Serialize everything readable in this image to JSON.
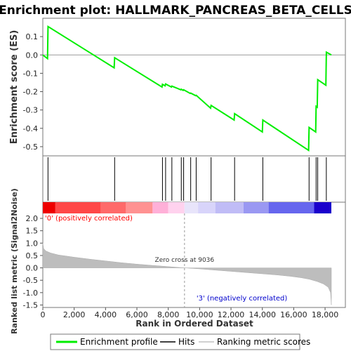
{
  "chart_data": {
    "type": "line",
    "title": "Enrichment plot: HALLMARK_PANCREAS_BETA_CELLS",
    "top_panel": {
      "ylabel": "Enrichment score (ES)",
      "ylim": [
        -0.55,
        0.2
      ],
      "yticks": [
        -0.5,
        -0.4,
        -0.3,
        -0.2,
        -0.1,
        0.0,
        0.1
      ],
      "ytick_labels": [
        "-0.5",
        "-0.4",
        "-0.3",
        "-0.2",
        "-0.1",
        "0.0",
        "0.1"
      ],
      "series": [
        {
          "name": "Enrichment profile",
          "color": "#00ee00",
          "x": [
            0,
            300,
            330,
            4550,
            4580,
            7600,
            7630,
            7800,
            7830,
            8200,
            8230,
            8800,
            8830,
            8950,
            8980,
            9400,
            9430,
            9750,
            9780,
            10700,
            10730,
            12200,
            12230,
            14000,
            14030,
            16950,
            16980,
            17400,
            17430,
            17500,
            17530,
            18050,
            18080,
            18400
          ],
          "y": [
            0.0,
            -0.02,
            0.155,
            -0.07,
            -0.015,
            -0.175,
            -0.16,
            -0.168,
            -0.158,
            -0.175,
            -0.17,
            -0.19,
            -0.187,
            -0.193,
            -0.19,
            -0.21,
            -0.208,
            -0.222,
            -0.22,
            -0.29,
            -0.275,
            -0.355,
            -0.32,
            -0.42,
            -0.355,
            -0.52,
            -0.395,
            -0.42,
            -0.28,
            -0.285,
            -0.135,
            -0.165,
            0.015,
            0.0
          ]
        }
      ]
    },
    "hits": {
      "name": "Hits",
      "positions": [
        330,
        4580,
        7630,
        7830,
        8230,
        8830,
        8980,
        9430,
        9780,
        10730,
        12230,
        14030,
        16980,
        17430,
        17530,
        18080
      ]
    },
    "bottom_panel": {
      "xlabel": "Rank in Ordered Dataset",
      "ylabel": "Ranked list metric (Signal2Noise)",
      "ylim": [
        -1.6,
        2.2
      ],
      "yticks": [
        -1.5,
        -1.0,
        -0.5,
        0.0,
        0.5,
        1.0,
        1.5,
        2.0
      ],
      "ytick_labels": [
        "-1.5",
        "-1.0",
        "-0.5",
        "0.0",
        "0.5",
        "1.0",
        "1.5",
        "2.0"
      ],
      "series": [
        {
          "name": "Ranking metric scores",
          "color": "#c0c0c0",
          "x": [
            0,
            50,
            200,
            500,
            1000,
            2000,
            3000,
            4000,
            5000,
            6000,
            7000,
            8000,
            9036,
            10000,
            11000,
            12000,
            13000,
            14000,
            15000,
            15800,
            16500,
            17000,
            17500,
            17900,
            18200,
            18350,
            18400
          ],
          "y": [
            1.0,
            0.78,
            0.68,
            0.6,
            0.52,
            0.43,
            0.35,
            0.28,
            0.21,
            0.15,
            0.1,
            0.05,
            0.0,
            -0.04,
            -0.09,
            -0.14,
            -0.19,
            -0.24,
            -0.29,
            -0.34,
            -0.4,
            -0.46,
            -0.55,
            -0.65,
            -0.78,
            -1.0,
            -1.5
          ]
        }
      ],
      "zero_cross_label": "Zero cross at 9036",
      "zero_cross_x": 9036,
      "pos_label": "'0' (positively correlated)",
      "neg_label": "'3' (negatively correlated)",
      "pos_color": "#ff0000",
      "neg_color": "#0000cc"
    },
    "xlim": [
      0,
      18400
    ],
    "xticks": [
      0,
      2000,
      4000,
      6000,
      8000,
      10000,
      12000,
      14000,
      16000,
      18000
    ],
    "xtick_labels": [
      "0",
      "2,000",
      "4,000",
      "6,000",
      "8,000",
      "10,000",
      "12,000",
      "14,000",
      "16,000",
      "18,000"
    ],
    "heatmap_bar": {
      "segments": [
        {
          "from": 0,
          "to": 800,
          "color": "#ee0000"
        },
        {
          "from": 800,
          "to": 3700,
          "color": "#ff4848"
        },
        {
          "from": 3700,
          "to": 5300,
          "color": "#ff6a6a"
        },
        {
          "from": 5300,
          "to": 7000,
          "color": "#ff9292"
        },
        {
          "from": 7000,
          "to": 8000,
          "color": "#ffb0d8"
        },
        {
          "from": 8000,
          "to": 9036,
          "color": "#ffd2ee"
        },
        {
          "from": 9036,
          "to": 9900,
          "color": "#e8e4fa"
        },
        {
          "from": 9900,
          "to": 11000,
          "color": "#d8d4fa"
        },
        {
          "from": 11000,
          "to": 12800,
          "color": "#c0bcf6"
        },
        {
          "from": 12800,
          "to": 14400,
          "color": "#9a98f2"
        },
        {
          "from": 14400,
          "to": 17300,
          "color": "#6666ee"
        },
        {
          "from": 17300,
          "to": 18400,
          "color": "#1a00cc"
        }
      ]
    },
    "legend": {
      "position": "bottom",
      "entries": [
        {
          "label": "Enrichment profile",
          "color": "#00ee00"
        },
        {
          "label": "Hits",
          "color": "#000000"
        },
        {
          "label": "Ranking metric scores",
          "color": "#c0c0c0"
        }
      ]
    }
  }
}
